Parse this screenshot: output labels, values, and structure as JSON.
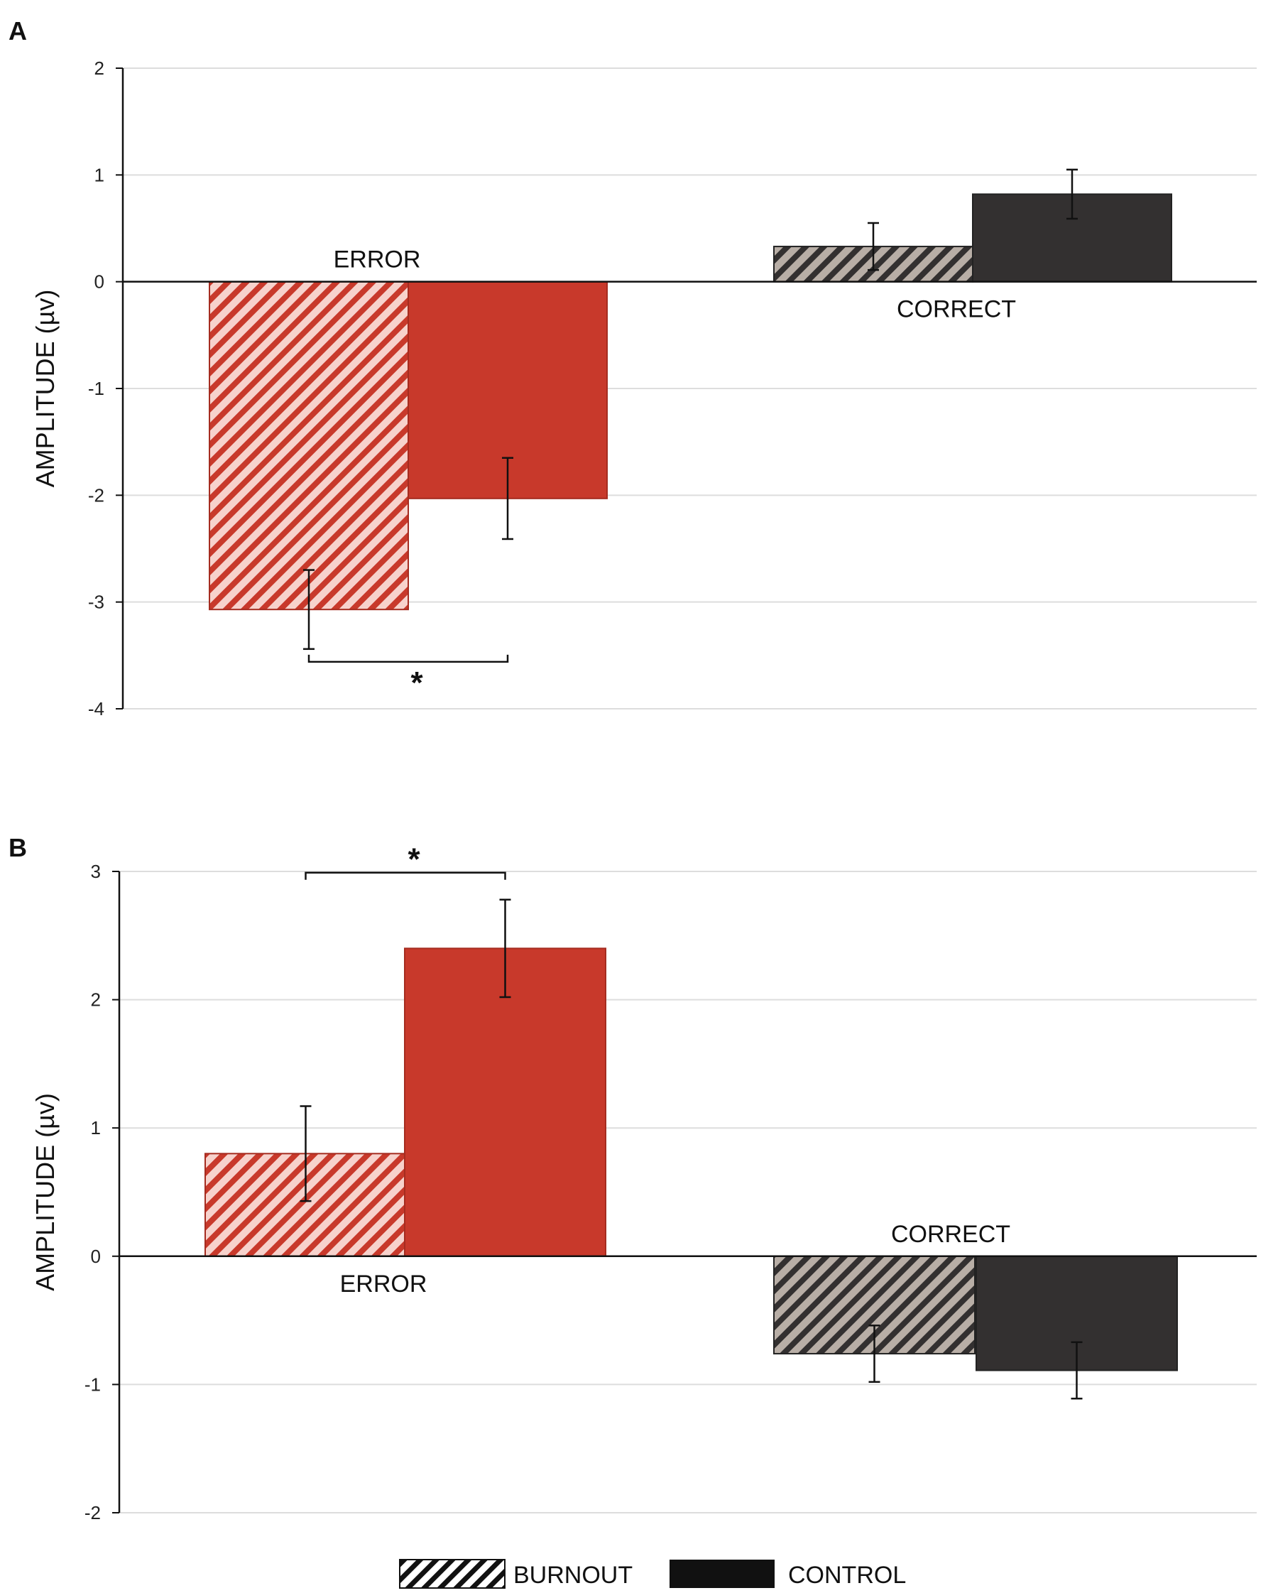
{
  "legend": {
    "burnout_label": "BURNOUT",
    "control_label": "CONTROL"
  },
  "colors": {
    "error": "#c8392b",
    "correct": "#333030",
    "error_hatch_bg": "#f7d2cc",
    "correct_hatch_bg": "#b8aea6",
    "gridline": "#dddddd"
  },
  "chart_data": [
    {
      "panel": "A",
      "type": "bar",
      "ylabel": "AMPLITUDE (µv)",
      "ylim": [
        -4,
        2
      ],
      "yticks": [
        2,
        1,
        0,
        -1,
        -2,
        -3,
        -4
      ],
      "grid": true,
      "groups": [
        {
          "label": "ERROR",
          "label_position": "above-axis",
          "bars": [
            {
              "series": "BURNOUT",
              "value": -3.07,
              "error": 0.37
            },
            {
              "series": "CONTROL",
              "value": -2.03,
              "error": 0.38
            }
          ],
          "significance": {
            "text": "*",
            "between": [
              "BURNOUT",
              "CONTROL"
            ],
            "position": "below"
          }
        },
        {
          "label": "CORRECT",
          "label_position": "below-axis",
          "bars": [
            {
              "series": "BURNOUT",
              "value": 0.33,
              "error": 0.22
            },
            {
              "series": "CONTROL",
              "value": 0.82,
              "error": 0.23
            }
          ]
        }
      ]
    },
    {
      "panel": "B",
      "type": "bar",
      "ylabel": "AMPLITUDE (µv)",
      "ylim": [
        -2,
        3
      ],
      "yticks": [
        3,
        2,
        1,
        0,
        -1,
        -2
      ],
      "grid": true,
      "groups": [
        {
          "label": "ERROR",
          "label_position": "below-axis",
          "bars": [
            {
              "series": "BURNOUT",
              "value": 0.8,
              "error": 0.37
            },
            {
              "series": "CONTROL",
              "value": 2.4,
              "error": 0.38
            }
          ],
          "significance": {
            "text": "*",
            "between": [
              "BURNOUT",
              "CONTROL"
            ],
            "position": "above"
          }
        },
        {
          "label": "CORRECT",
          "label_position": "above-axis",
          "bars": [
            {
              "series": "BURNOUT",
              "value": -0.76,
              "error": 0.22
            },
            {
              "series": "CONTROL",
              "value": -0.89,
              "error": 0.22
            }
          ]
        }
      ]
    }
  ]
}
